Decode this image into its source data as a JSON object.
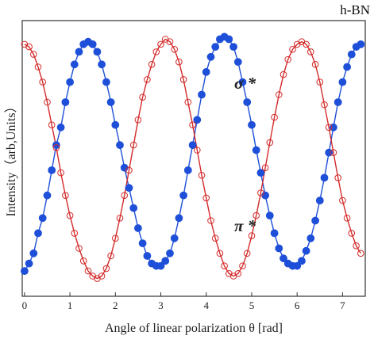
{
  "colors": {
    "sigma": "#1e4fd8",
    "pi": "#d42a2a",
    "axis": "#333333",
    "background": "#ffffff"
  },
  "chart_data": {
    "type": "scatter",
    "title": "h-BN",
    "xlabel": "Angle of linear polarization θ [rad]",
    "ylabel": "Intensity（arb,Units）",
    "xlim": [
      -0.05,
      7.5
    ],
    "ylim": [
      0,
      1
    ],
    "xticks": [
      0,
      1,
      2,
      3,
      4,
      5,
      6,
      7
    ],
    "xtick_labels": [
      "0",
      "1",
      "2",
      "3",
      "4",
      "5",
      "6",
      "7"
    ],
    "grid": false,
    "legend": "none (series labeled inline)",
    "series": [
      {
        "name": "σ *",
        "marker": "filled circle",
        "points": [
          [
            0.0,
            0.05
          ],
          [
            0.1,
            0.08
          ],
          [
            0.2,
            0.12
          ],
          [
            0.3,
            0.2
          ],
          [
            0.4,
            0.26
          ],
          [
            0.5,
            0.35
          ],
          [
            0.6,
            0.45
          ],
          [
            0.7,
            0.55
          ],
          [
            0.8,
            0.62
          ],
          [
            0.9,
            0.72
          ],
          [
            1.0,
            0.8
          ],
          [
            1.1,
            0.87
          ],
          [
            1.2,
            0.92
          ],
          [
            1.3,
            0.95
          ],
          [
            1.4,
            0.96
          ],
          [
            1.5,
            0.95
          ],
          [
            1.6,
            0.92
          ],
          [
            1.7,
            0.87
          ],
          [
            1.8,
            0.8
          ],
          [
            1.9,
            0.72
          ],
          [
            2.0,
            0.63
          ],
          [
            2.1,
            0.55
          ],
          [
            2.2,
            0.46
          ],
          [
            2.3,
            0.38
          ],
          [
            2.4,
            0.3
          ],
          [
            2.5,
            0.22
          ],
          [
            2.6,
            0.16
          ],
          [
            2.7,
            0.11
          ],
          [
            2.8,
            0.08
          ],
          [
            2.9,
            0.07
          ],
          [
            3.0,
            0.07
          ],
          [
            3.1,
            0.09
          ],
          [
            3.2,
            0.12
          ],
          [
            3.3,
            0.18
          ],
          [
            3.4,
            0.26
          ],
          [
            3.5,
            0.35
          ],
          [
            3.6,
            0.45
          ],
          [
            3.7,
            0.55
          ],
          [
            3.8,
            0.65
          ],
          [
            3.9,
            0.75
          ],
          [
            4.0,
            0.84
          ],
          [
            4.1,
            0.9
          ],
          [
            4.2,
            0.94
          ],
          [
            4.3,
            0.97
          ],
          [
            4.4,
            0.98
          ],
          [
            4.5,
            0.97
          ],
          [
            4.6,
            0.94
          ],
          [
            4.7,
            0.88
          ],
          [
            4.8,
            0.8
          ],
          [
            4.9,
            0.72
          ],
          [
            5.0,
            0.63
          ],
          [
            5.1,
            0.53
          ],
          [
            5.2,
            0.44
          ],
          [
            5.3,
            0.35
          ],
          [
            5.4,
            0.27
          ],
          [
            5.5,
            0.2
          ],
          [
            5.6,
            0.14
          ],
          [
            5.7,
            0.1
          ],
          [
            5.8,
            0.08
          ],
          [
            5.9,
            0.07
          ],
          [
            6.0,
            0.07
          ],
          [
            6.1,
            0.09
          ],
          [
            6.2,
            0.13
          ],
          [
            6.3,
            0.18
          ],
          [
            6.4,
            0.25
          ],
          [
            6.5,
            0.33
          ],
          [
            6.6,
            0.42
          ],
          [
            6.7,
            0.52
          ],
          [
            6.8,
            0.62
          ],
          [
            6.9,
            0.72
          ],
          [
            7.0,
            0.8
          ],
          [
            7.1,
            0.86
          ],
          [
            7.2,
            0.91
          ],
          [
            7.3,
            0.94
          ],
          [
            7.4,
            0.95
          ]
        ]
      },
      {
        "name": "π *",
        "marker": "open circle",
        "points": [
          [
            0.0,
            0.95
          ],
          [
            0.1,
            0.94
          ],
          [
            0.2,
            0.91
          ],
          [
            0.3,
            0.86
          ],
          [
            0.4,
            0.8
          ],
          [
            0.5,
            0.72
          ],
          [
            0.6,
            0.63
          ],
          [
            0.7,
            0.54
          ],
          [
            0.8,
            0.44
          ],
          [
            0.9,
            0.35
          ],
          [
            1.0,
            0.27
          ],
          [
            1.1,
            0.2
          ],
          [
            1.2,
            0.14
          ],
          [
            1.3,
            0.09
          ],
          [
            1.4,
            0.05
          ],
          [
            1.5,
            0.03
          ],
          [
            1.6,
            0.02
          ],
          [
            1.7,
            0.03
          ],
          [
            1.8,
            0.06
          ],
          [
            1.9,
            0.11
          ],
          [
            2.0,
            0.18
          ],
          [
            2.1,
            0.26
          ],
          [
            2.2,
            0.35
          ],
          [
            2.3,
            0.45
          ],
          [
            2.4,
            0.55
          ],
          [
            2.5,
            0.65
          ],
          [
            2.6,
            0.74
          ],
          [
            2.7,
            0.81
          ],
          [
            2.8,
            0.87
          ],
          [
            2.9,
            0.92
          ],
          [
            3.0,
            0.95
          ],
          [
            3.1,
            0.97
          ],
          [
            3.2,
            0.96
          ],
          [
            3.3,
            0.93
          ],
          [
            3.4,
            0.88
          ],
          [
            3.5,
            0.81
          ],
          [
            3.6,
            0.72
          ],
          [
            3.7,
            0.63
          ],
          [
            3.8,
            0.53
          ],
          [
            3.9,
            0.43
          ],
          [
            4.0,
            0.34
          ],
          [
            4.1,
            0.25
          ],
          [
            4.2,
            0.18
          ],
          [
            4.3,
            0.12
          ],
          [
            4.4,
            0.07
          ],
          [
            4.5,
            0.04
          ],
          [
            4.6,
            0.03
          ],
          [
            4.7,
            0.04
          ],
          [
            4.8,
            0.07
          ],
          [
            4.9,
            0.12
          ],
          [
            5.0,
            0.19
          ],
          [
            5.1,
            0.27
          ],
          [
            5.2,
            0.36
          ],
          [
            5.3,
            0.46
          ],
          [
            5.4,
            0.56
          ],
          [
            5.5,
            0.66
          ],
          [
            5.6,
            0.75
          ],
          [
            5.7,
            0.83
          ],
          [
            5.8,
            0.89
          ],
          [
            5.9,
            0.93
          ],
          [
            6.0,
            0.95
          ],
          [
            6.1,
            0.96
          ],
          [
            6.2,
            0.95
          ],
          [
            6.3,
            0.92
          ],
          [
            6.4,
            0.87
          ],
          [
            6.5,
            0.8
          ],
          [
            6.6,
            0.71
          ],
          [
            6.7,
            0.62
          ],
          [
            6.8,
            0.52
          ],
          [
            6.9,
            0.42
          ],
          [
            7.0,
            0.33
          ],
          [
            7.1,
            0.26
          ],
          [
            7.2,
            0.2
          ],
          [
            7.3,
            0.15
          ],
          [
            7.4,
            0.12
          ]
        ]
      }
    ]
  }
}
